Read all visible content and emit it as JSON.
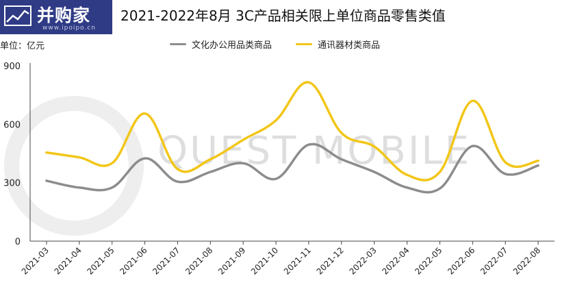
{
  "logo": {
    "text": "并购家",
    "sub": "www.ipoipo.cn"
  },
  "title": "2021-2022年8月 3C产品相关限上单位商品零售类值",
  "unit_label": "单位：亿元",
  "watermark": "QUEST MOBILE",
  "colors": {
    "series1": "#8c8c8c",
    "series2": "#f2c618",
    "logo_bg": "#2f3b85",
    "axis": "#444444"
  },
  "chart_data": {
    "type": "line",
    "categories": [
      "2021-03",
      "2021-04",
      "2021-05",
      "2021-06",
      "2021-07",
      "2021-08",
      "2021-09",
      "2021-10",
      "2021-11",
      "2021-12",
      "2022-03",
      "2022-04",
      "2022-05",
      "2022-06",
      "2022-07",
      "2022-08"
    ],
    "series": [
      {
        "name": "文化办公用品类商品",
        "values": [
          310,
          275,
          275,
          425,
          305,
          355,
          400,
          320,
          495,
          420,
          355,
          275,
          270,
          488,
          345,
          388
        ]
      },
      {
        "name": "通讯器材类商品",
        "values": [
          455,
          430,
          400,
          655,
          370,
          420,
          520,
          620,
          815,
          555,
          485,
          340,
          355,
          720,
          405,
          412
        ]
      }
    ],
    "ylim": [
      0,
      900
    ],
    "yticks": [
      0,
      300,
      600,
      900
    ],
    "xlabel": "",
    "ylabel": "",
    "legend": "top-center",
    "grid": false
  }
}
